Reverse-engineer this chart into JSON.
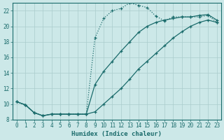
{
  "xlabel": "Humidex (Indice chaleur)",
  "background_color": "#cce8e8",
  "grid_color": "#aacccc",
  "line_color": "#1a6b6b",
  "xlim": [
    -0.5,
    23.5
  ],
  "ylim": [
    8,
    23
  ],
  "xticks": [
    0,
    1,
    2,
    3,
    4,
    5,
    6,
    7,
    8,
    9,
    10,
    11,
    12,
    13,
    14,
    15,
    16,
    17,
    18,
    19,
    20,
    21,
    22,
    23
  ],
  "yticks": [
    8,
    10,
    12,
    14,
    16,
    18,
    20,
    22
  ],
  "line1_x": [
    0,
    1,
    2,
    3,
    4,
    5,
    6,
    7,
    8,
    9,
    10,
    11,
    12,
    13,
    14,
    15,
    16,
    17,
    18,
    19,
    20,
    21,
    22,
    23
  ],
  "line1_y": [
    10.3,
    9.9,
    8.9,
    8.5,
    8.7,
    8.7,
    8.7,
    8.7,
    8.7,
    9.0,
    10.0,
    11.0,
    12.0,
    13.2,
    14.5,
    15.5,
    16.5,
    17.5,
    18.5,
    19.3,
    20.0,
    20.5,
    20.8,
    20.5
  ],
  "line2_x": [
    0,
    1,
    2,
    3,
    4,
    5,
    6,
    7,
    8,
    9,
    10,
    11,
    12,
    13,
    14,
    15,
    16,
    17,
    18,
    19,
    20,
    21,
    22,
    23
  ],
  "line2_y": [
    10.3,
    9.9,
    8.9,
    8.5,
    8.7,
    8.7,
    8.7,
    8.7,
    8.7,
    18.5,
    21.0,
    22.0,
    22.3,
    23.0,
    22.7,
    22.4,
    21.3,
    20.7,
    21.2,
    21.2,
    21.2,
    21.2,
    21.4,
    20.5
  ],
  "line3_x": [
    0,
    1,
    2,
    3,
    4,
    5,
    6,
    7,
    8,
    9,
    10,
    11,
    12,
    13,
    14,
    15,
    16,
    17,
    18,
    19,
    20,
    21,
    22,
    23
  ],
  "line3_y": [
    10.3,
    9.9,
    8.9,
    8.5,
    8.7,
    8.7,
    8.7,
    8.7,
    8.7,
    12.5,
    14.2,
    15.5,
    16.8,
    18.0,
    19.2,
    20.0,
    20.5,
    20.8,
    21.0,
    21.2,
    21.2,
    21.4,
    21.5,
    20.8
  ],
  "tick_fontsize": 5.5,
  "xlabel_fontsize": 6.5
}
